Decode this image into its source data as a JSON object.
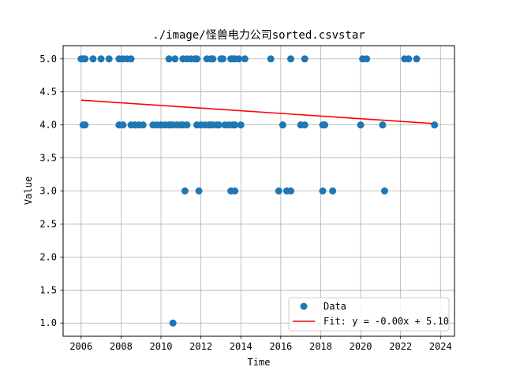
{
  "chart_data": {
    "type": "scatter",
    "title": "./image/怪兽电力公司sorted.csvstar",
    "xlabel": "Time",
    "ylabel": "Value",
    "xlim": [
      2005.1,
      2024.7
    ],
    "ylim": [
      0.8,
      5.2
    ],
    "x_ticks": [
      2006,
      2008,
      2010,
      2012,
      2014,
      2016,
      2018,
      2020,
      2022,
      2024
    ],
    "y_ticks": [
      1.0,
      1.5,
      2.0,
      2.5,
      3.0,
      3.5,
      4.0,
      4.5,
      5.0
    ],
    "grid": true,
    "legend_position": "lower right",
    "series": [
      {
        "name": "Data",
        "kind": "scatter",
        "color": "#1f77b4",
        "points": [
          [
            2006.0,
            5.0
          ],
          [
            2006.1,
            5.0
          ],
          [
            2006.2,
            5.0
          ],
          [
            2006.6,
            5.0
          ],
          [
            2007.0,
            5.0
          ],
          [
            2007.4,
            5.0
          ],
          [
            2007.9,
            5.0
          ],
          [
            2008.1,
            5.0
          ],
          [
            2008.3,
            5.0
          ],
          [
            2008.5,
            5.0
          ],
          [
            2010.4,
            5.0
          ],
          [
            2010.7,
            5.0
          ],
          [
            2011.1,
            5.0
          ],
          [
            2011.3,
            5.0
          ],
          [
            2011.5,
            5.0
          ],
          [
            2011.7,
            5.0
          ],
          [
            2011.8,
            5.0
          ],
          [
            2012.3,
            5.0
          ],
          [
            2012.5,
            5.0
          ],
          [
            2012.6,
            5.0
          ],
          [
            2013.0,
            5.0
          ],
          [
            2013.1,
            5.0
          ],
          [
            2013.5,
            5.0
          ],
          [
            2013.6,
            5.0
          ],
          [
            2013.7,
            5.0
          ],
          [
            2013.9,
            5.0
          ],
          [
            2014.2,
            5.0
          ],
          [
            2015.5,
            5.0
          ],
          [
            2016.5,
            5.0
          ],
          [
            2017.2,
            5.0
          ],
          [
            2020.1,
            5.0
          ],
          [
            2020.3,
            5.0
          ],
          [
            2022.2,
            5.0
          ],
          [
            2022.4,
            5.0
          ],
          [
            2022.8,
            5.0
          ],
          [
            2006.1,
            4.0
          ],
          [
            2006.2,
            4.0
          ],
          [
            2007.9,
            4.0
          ],
          [
            2008.1,
            4.0
          ],
          [
            2008.5,
            4.0
          ],
          [
            2008.7,
            4.0
          ],
          [
            2008.9,
            4.0
          ],
          [
            2009.1,
            4.0
          ],
          [
            2009.6,
            4.0
          ],
          [
            2009.8,
            4.0
          ],
          [
            2010.0,
            4.0
          ],
          [
            2010.2,
            4.0
          ],
          [
            2010.4,
            4.0
          ],
          [
            2010.5,
            4.0
          ],
          [
            2010.6,
            4.0
          ],
          [
            2010.8,
            4.0
          ],
          [
            2011.0,
            4.0
          ],
          [
            2011.1,
            4.0
          ],
          [
            2011.3,
            4.0
          ],
          [
            2011.8,
            4.0
          ],
          [
            2012.0,
            4.0
          ],
          [
            2012.2,
            4.0
          ],
          [
            2012.4,
            4.0
          ],
          [
            2012.5,
            4.0
          ],
          [
            2012.6,
            4.0
          ],
          [
            2012.8,
            4.0
          ],
          [
            2012.9,
            4.0
          ],
          [
            2013.2,
            4.0
          ],
          [
            2013.4,
            4.0
          ],
          [
            2013.6,
            4.0
          ],
          [
            2013.7,
            4.0
          ],
          [
            2014.0,
            4.0
          ],
          [
            2016.1,
            4.0
          ],
          [
            2017.0,
            4.0
          ],
          [
            2017.2,
            4.0
          ],
          [
            2018.1,
            4.0
          ],
          [
            2018.2,
            4.0
          ],
          [
            2020.0,
            4.0
          ],
          [
            2021.1,
            4.0
          ],
          [
            2023.7,
            4.0
          ],
          [
            2011.2,
            3.0
          ],
          [
            2011.9,
            3.0
          ],
          [
            2013.5,
            3.0
          ],
          [
            2013.7,
            3.0
          ],
          [
            2015.9,
            3.0
          ],
          [
            2016.3,
            3.0
          ],
          [
            2016.5,
            3.0
          ],
          [
            2018.1,
            3.0
          ],
          [
            2018.6,
            3.0
          ],
          [
            2021.2,
            3.0
          ],
          [
            2010.6,
            1.0
          ]
        ]
      },
      {
        "name": "Fit: y = -0.00x + 5.10",
        "kind": "line",
        "color": "#ff0000",
        "x": [
          2006.0,
          2023.7
        ],
        "y": [
          4.375,
          4.02
        ]
      }
    ]
  }
}
